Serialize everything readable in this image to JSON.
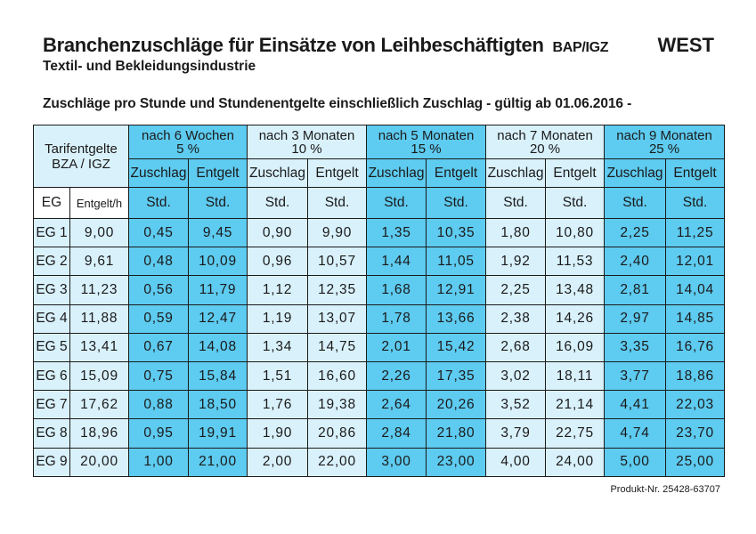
{
  "header": {
    "title": "Branchenzuschläge für Einsätze von Leihbeschäftigten",
    "title_suffix": "BAP/IGZ",
    "region": "WEST",
    "subtitle": "Textil- und Bekleidungsindustrie",
    "heading": "Zuschläge pro Stunde und Stundenentgelte einschließlich Zuschlag - gültig ab 01.06.2016 -"
  },
  "table": {
    "corner_line1": "Tarifentgelte",
    "corner_line2": "BZA / IGZ",
    "groups": [
      {
        "line1": "nach 6 Wochen",
        "line2": "5 %"
      },
      {
        "line1": "nach 3 Monaten",
        "line2": "10 %"
      },
      {
        "line1": "nach 5 Monaten",
        "line2": "15 %"
      },
      {
        "line1": "nach 7 Monaten",
        "line2": "20 %"
      },
      {
        "line1": "nach 9 Monaten",
        "line2": "25 %"
      }
    ],
    "sub_zuschlag": "Zuschlag",
    "sub_entgelt": "Entgelt",
    "col_eg": "EG",
    "col_entgelt_h": "Entgelt/h",
    "unit": "Std.",
    "rows": [
      {
        "eg": "EG 1",
        "base": "9,00",
        "v": [
          "0,45",
          "9,45",
          "0,90",
          "9,90",
          "1,35",
          "10,35",
          "1,80",
          "10,80",
          "2,25",
          "11,25"
        ]
      },
      {
        "eg": "EG 2",
        "base": "9,61",
        "v": [
          "0,48",
          "10,09",
          "0,96",
          "10,57",
          "1,44",
          "11,05",
          "1,92",
          "11,53",
          "2,40",
          "12,01"
        ]
      },
      {
        "eg": "EG 3",
        "base": "11,23",
        "v": [
          "0,56",
          "11,79",
          "1,12",
          "12,35",
          "1,68",
          "12,91",
          "2,25",
          "13,48",
          "2,81",
          "14,04"
        ]
      },
      {
        "eg": "EG 4",
        "base": "11,88",
        "v": [
          "0,59",
          "12,47",
          "1,19",
          "13,07",
          "1,78",
          "13,66",
          "2,38",
          "14,26",
          "2,97",
          "14,85"
        ]
      },
      {
        "eg": "EG 5",
        "base": "13,41",
        "v": [
          "0,67",
          "14,08",
          "1,34",
          "14,75",
          "2,01",
          "15,42",
          "2,68",
          "16,09",
          "3,35",
          "16,76"
        ]
      },
      {
        "eg": "EG 6",
        "base": "15,09",
        "v": [
          "0,75",
          "15,84",
          "1,51",
          "16,60",
          "2,26",
          "17,35",
          "3,02",
          "18,11",
          "3,77",
          "18,86"
        ]
      },
      {
        "eg": "EG 7",
        "base": "17,62",
        "v": [
          "0,88",
          "18,50",
          "1,76",
          "19,38",
          "2,64",
          "20,26",
          "3,52",
          "21,14",
          "4,41",
          "22,03"
        ]
      },
      {
        "eg": "EG 8",
        "base": "18,96",
        "v": [
          "0,95",
          "19,91",
          "1,90",
          "20,86",
          "2,84",
          "21,80",
          "3,79",
          "22,75",
          "4,74",
          "23,70"
        ]
      },
      {
        "eg": "EG 9",
        "base": "20,00",
        "v": [
          "1,00",
          "21,00",
          "2,00",
          "22,00",
          "3,00",
          "23,00",
          "4,00",
          "24,00",
          "5,00",
          "25,00"
        ]
      }
    ]
  },
  "footer": "Produkt-Nr. 25428-63707",
  "colors": {
    "blue": "#5ecbf0",
    "pale": "#d9f1fb"
  }
}
